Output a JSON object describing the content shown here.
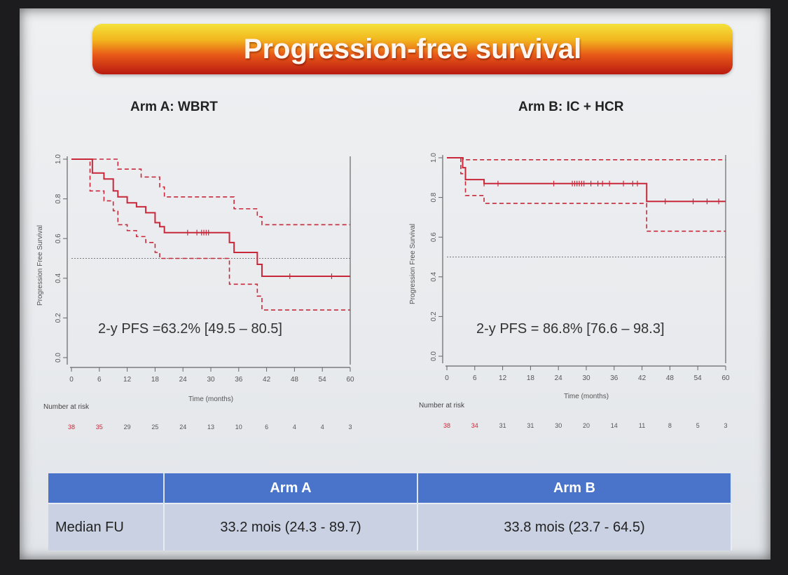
{
  "slide_title": "Progression-free survival",
  "chart_data": [
    {
      "type": "line",
      "title": "Arm A: WBRT",
      "xlabel": "Time (months)",
      "ylabel": "Progression Free Survival",
      "xlim": [
        0,
        60
      ],
      "ylim": [
        0,
        1
      ],
      "x_ticks": [
        "0",
        "6",
        "12",
        "18",
        "24",
        "30",
        "36",
        "42",
        "48",
        "54",
        "60"
      ],
      "y_ticks": [
        "0.0",
        "0.2",
        "0.4",
        "0.6",
        "0.8",
        "1.0"
      ],
      "reference_line_y": 0.5,
      "annotation": "2-y PFS =63.2% [49.5 – 80.5]",
      "series": [
        {
          "role": "estimate",
          "x": [
            0,
            4,
            4.5,
            7,
            9,
            10,
            12,
            14,
            16,
            18,
            19,
            20,
            33,
            34,
            35,
            40,
            41,
            60
          ],
          "y": [
            1.0,
            1.0,
            0.93,
            0.9,
            0.84,
            0.81,
            0.78,
            0.76,
            0.73,
            0.68,
            0.66,
            0.63,
            0.63,
            0.58,
            0.53,
            0.47,
            0.41,
            0.41
          ]
        },
        {
          "role": "upper",
          "x": [
            0,
            9,
            10,
            15,
            19,
            20,
            33,
            35,
            40,
            41,
            60
          ],
          "y": [
            1.0,
            1.0,
            0.95,
            0.91,
            0.86,
            0.81,
            0.81,
            0.75,
            0.71,
            0.67,
            0.67
          ]
        },
        {
          "role": "lower",
          "x": [
            0,
            4,
            7,
            9,
            10,
            12,
            14,
            16,
            18,
            19,
            33,
            34,
            40,
            41,
            60
          ],
          "y": [
            1.0,
            0.84,
            0.79,
            0.74,
            0.67,
            0.64,
            0.61,
            0.58,
            0.53,
            0.5,
            0.5,
            0.37,
            0.31,
            0.24,
            0.24
          ]
        }
      ],
      "censor_x": [
        25,
        27,
        28,
        28.5,
        29,
        29.5,
        47,
        56
      ],
      "risk_label": "Number at risk",
      "at_risk": [
        "38",
        "35",
        "29",
        "25",
        "24",
        "13",
        "10",
        "6",
        "4",
        "4",
        "3"
      ]
    },
    {
      "type": "line",
      "title": "Arm B: IC + HCR",
      "xlabel": "Time (months)",
      "ylabel": "Progression Free Survival",
      "xlim": [
        0,
        60
      ],
      "ylim": [
        0,
        1
      ],
      "x_ticks": [
        "0",
        "6",
        "12",
        "18",
        "24",
        "30",
        "36",
        "42",
        "48",
        "54",
        "60"
      ],
      "y_ticks": [
        "0.0",
        "0.2",
        "0.4",
        "0.6",
        "0.8",
        "1.0"
      ],
      "reference_line_y": 0.5,
      "annotation": "2-y PFS = 86.8% [76.6 – 98.3]",
      "series": [
        {
          "role": "estimate",
          "x": [
            0,
            3,
            3.4,
            4,
            8,
            43,
            60
          ],
          "y": [
            1.0,
            1.0,
            0.95,
            0.89,
            0.87,
            0.78,
            0.78
          ]
        },
        {
          "role": "upper",
          "x": [
            0,
            3.5,
            43,
            60
          ],
          "y": [
            1.0,
            0.99,
            0.99,
            0.99
          ]
        },
        {
          "role": "lower",
          "x": [
            0,
            3,
            4,
            8,
            43,
            60
          ],
          "y": [
            1.0,
            0.92,
            0.81,
            0.77,
            0.63,
            0.63
          ]
        }
      ],
      "censor_x": [
        8,
        11,
        23,
        27,
        27.5,
        28,
        28.5,
        29,
        29.5,
        31,
        32.5,
        33.5,
        35,
        38,
        40,
        41,
        47,
        53,
        56,
        58.5
      ],
      "risk_label": "Number at risk",
      "at_risk": [
        "38",
        "34",
        "31",
        "31",
        "30",
        "20",
        "14",
        "11",
        "8",
        "5",
        "3"
      ]
    }
  ],
  "fu_table": {
    "headers": [
      "",
      "Arm A",
      "Arm B"
    ],
    "row_label": "Median FU",
    "arm_a": "33.2 mois (24.3 - 89.7)",
    "arm_b": "33.8 mois (23.7 - 64.5)"
  },
  "colors": {
    "curve": "#c8283a",
    "axis": "#666666",
    "reference": "#777777",
    "header_bg": "#4a74c9",
    "body_bg": "#c9d1e3"
  }
}
